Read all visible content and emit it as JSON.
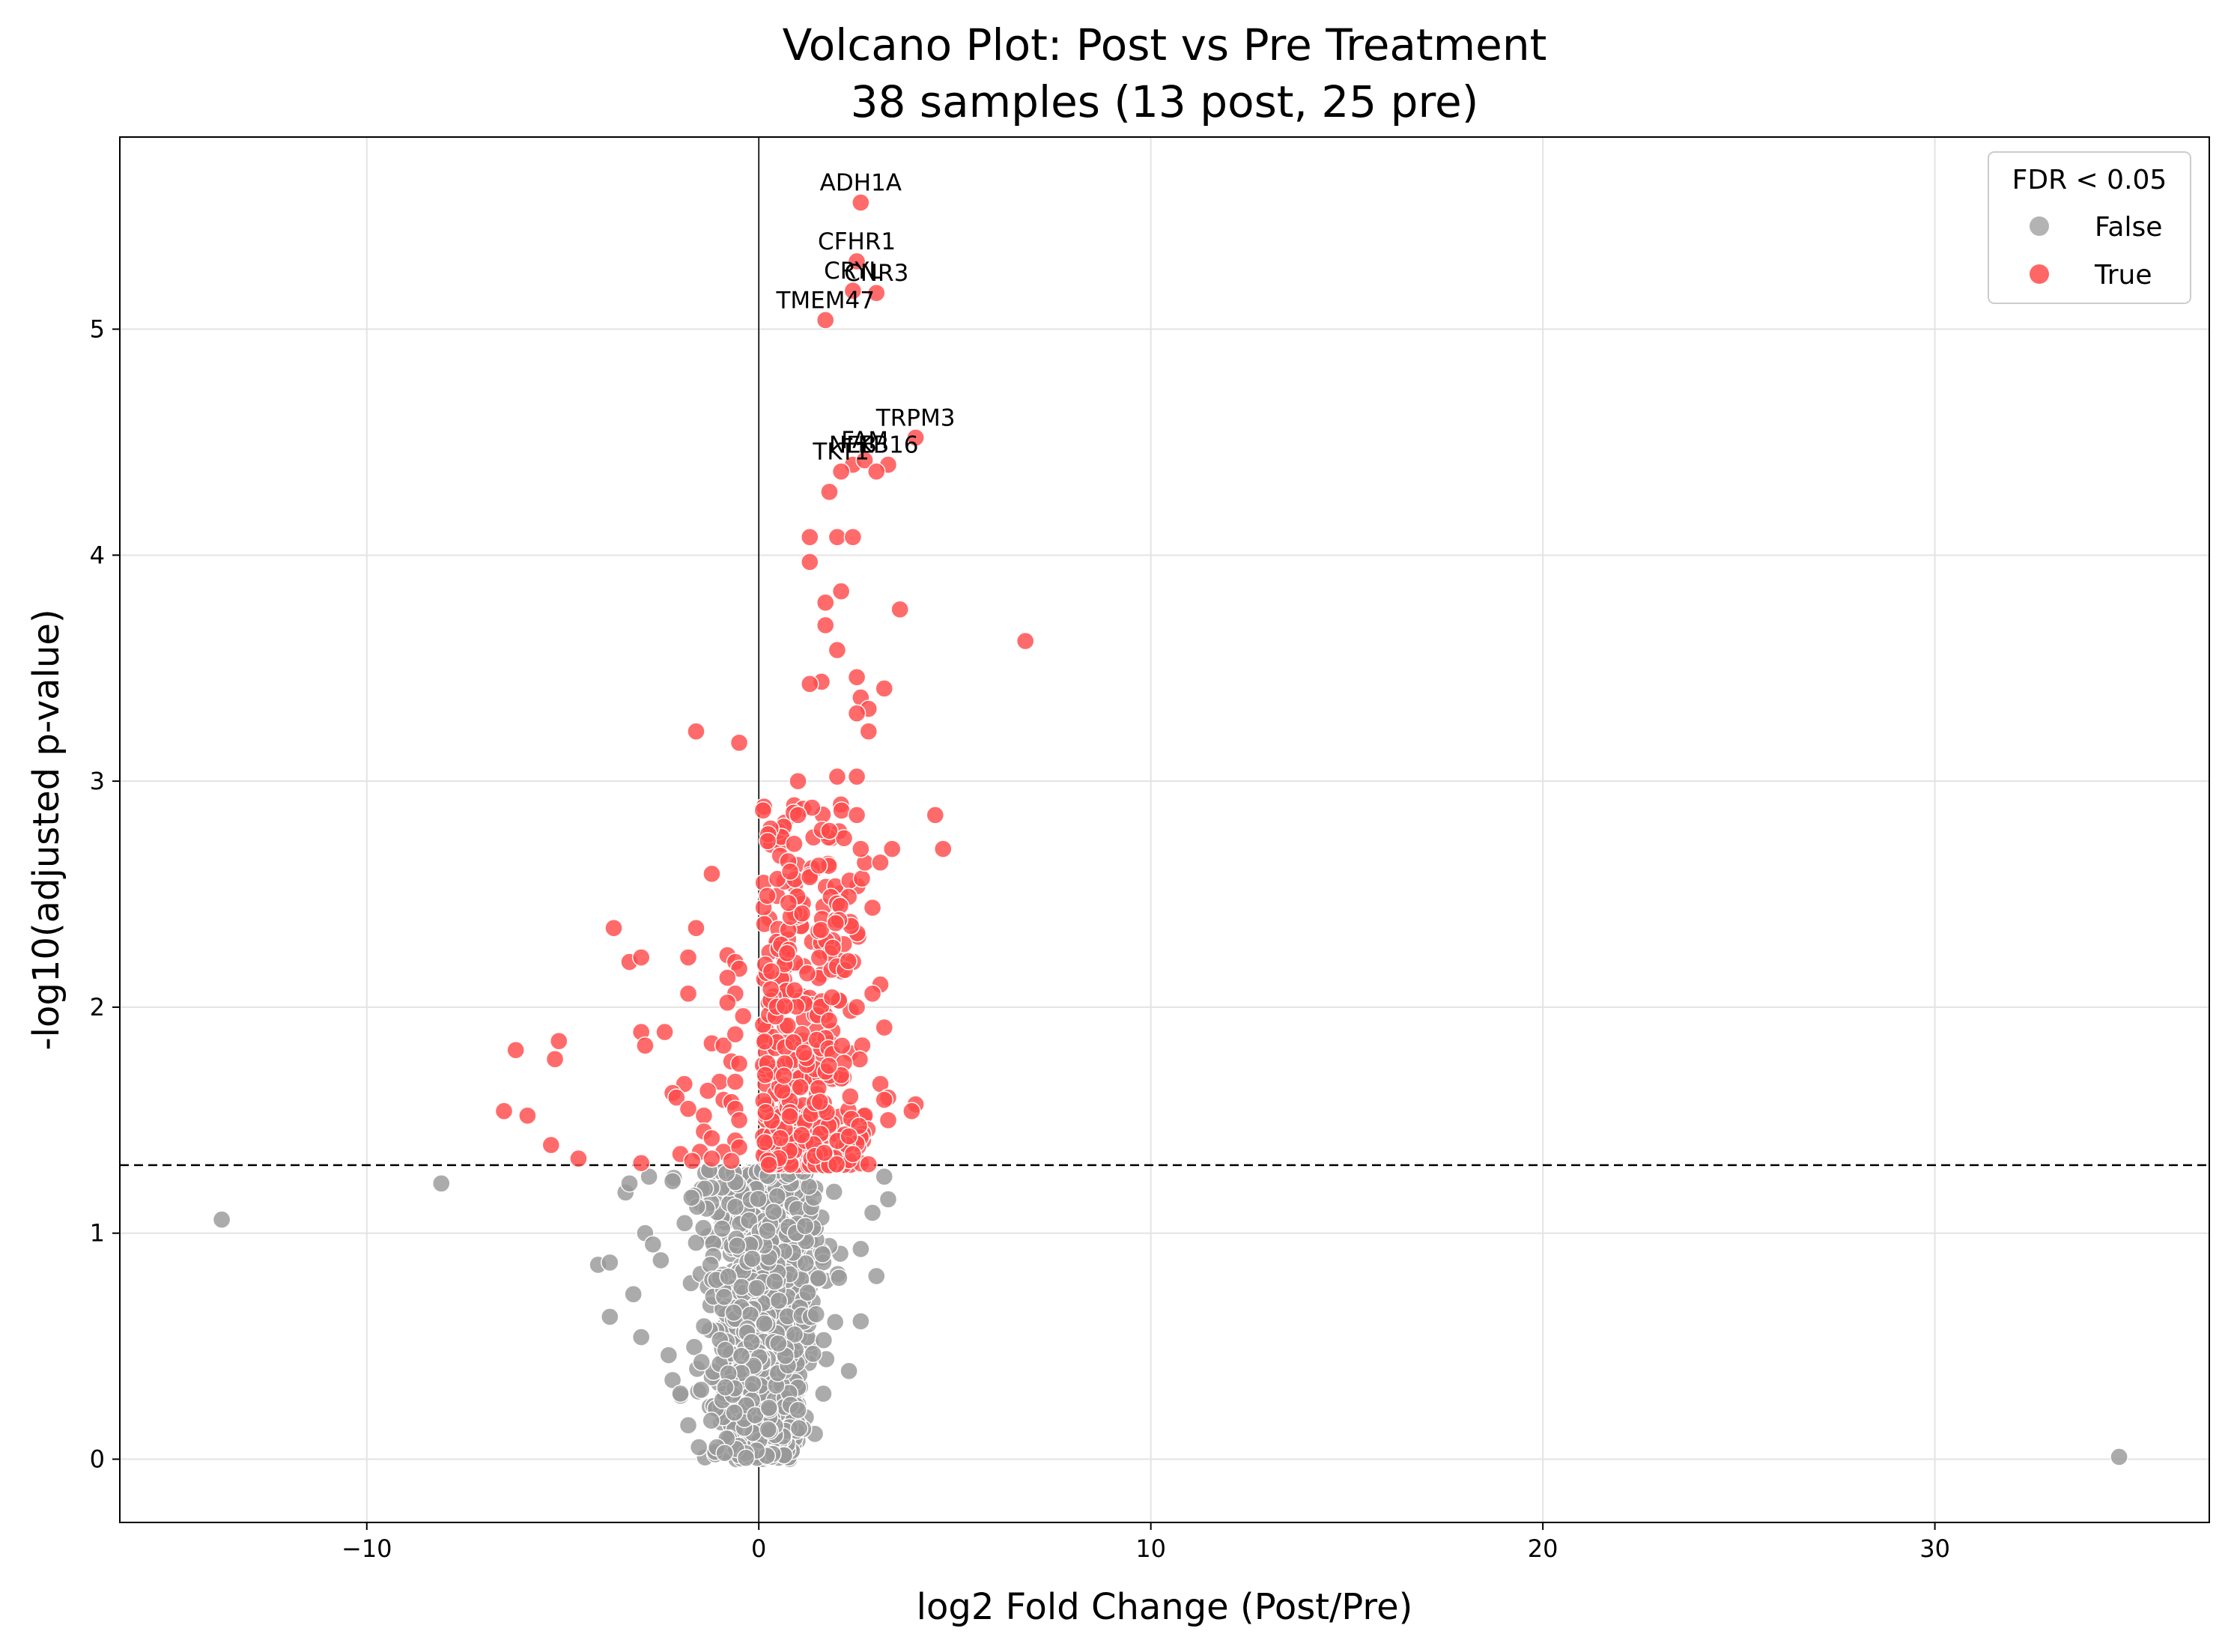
{
  "chart_data": {
    "type": "scatter",
    "title": "Volcano Plot: Post vs Pre Treatment",
    "subtitle": "38 samples (13 post, 25 pre)",
    "xlabel": "log2 Fold Change (Post/Pre)",
    "ylabel": "-log10(adjusted p-value)",
    "xlim": [
      -16.3,
      37
    ],
    "ylim": [
      -0.28,
      5.85
    ],
    "xticks": [
      -10,
      0,
      10,
      20,
      30
    ],
    "xtick_labels": [
      "−10",
      "0",
      "10",
      "20",
      "30"
    ],
    "yticks": [
      0,
      1,
      2,
      3,
      4,
      5
    ],
    "ytick_labels": [
      "0",
      "1",
      "2",
      "3",
      "4",
      "5"
    ],
    "grid": true,
    "threshold_y": 1.301,
    "reference_x": 0,
    "legend": {
      "title": "FDR < 0.05",
      "placement": "top-right",
      "entries": [
        {
          "label": "False",
          "color": "#999999"
        },
        {
          "label": "True",
          "color": "#ff4b4b"
        }
      ]
    },
    "colors": {
      "not_significant": "#999999",
      "significant": "#ff4b4b"
    },
    "series": [
      {
        "name": "False",
        "color": "#999999",
        "points": [
          [
            -13.7,
            1.06
          ],
          [
            -8.1,
            1.22
          ],
          [
            34.7,
            0.01
          ],
          [
            -4.1,
            0.86
          ],
          [
            -3.8,
            0.87
          ],
          [
            -3.8,
            0.63
          ],
          [
            -3.2,
            0.73
          ],
          [
            -3.0,
            0.54
          ],
          [
            -3.4,
            1.18
          ],
          [
            -3.3,
            1.22
          ],
          [
            -2.8,
            1.25
          ],
          [
            -2.2,
            1.23
          ],
          [
            2.3,
            0.39
          ],
          [
            2.9,
            1.09
          ],
          [
            3.0,
            0.81
          ],
          [
            3.3,
            1.15
          ],
          [
            3.2,
            1.25
          ],
          [
            2.6,
            0.61
          ],
          [
            2.6,
            0.93
          ],
          [
            -2.9,
            1.0
          ],
          [
            -2.7,
            0.95
          ],
          [
            -2.5,
            0.88
          ],
          [
            -2.3,
            0.46
          ],
          [
            -2.2,
            0.35
          ],
          [
            -2.0,
            0.29
          ],
          [
            -1.8,
            0.15
          ]
        ],
        "bulk": [
          {
            "n": 640,
            "x_mean": 0.45,
            "x_sd": 0.8,
            "y_max": 1.28
          },
          {
            "n": 260,
            "x_mean": -0.55,
            "x_sd": 0.8,
            "y_max": 1.28
          }
        ]
      },
      {
        "name": "True",
        "color": "#ff4b4b",
        "points": [
          [
            2.6,
            5.56
          ],
          [
            2.5,
            5.3
          ],
          [
            2.4,
            5.17
          ],
          [
            3.0,
            5.16
          ],
          [
            1.7,
            5.04
          ],
          [
            4.0,
            4.52
          ],
          [
            2.4,
            4.4
          ],
          [
            2.7,
            4.42
          ],
          [
            3.3,
            4.4
          ],
          [
            3.0,
            4.37
          ],
          [
            2.1,
            4.37
          ],
          [
            1.8,
            4.28
          ],
          [
            1.3,
            4.08
          ],
          [
            2.0,
            4.08
          ],
          [
            2.4,
            4.08
          ],
          [
            1.3,
            3.97
          ],
          [
            2.1,
            3.84
          ],
          [
            1.7,
            3.79
          ],
          [
            3.6,
            3.76
          ],
          [
            1.7,
            3.69
          ],
          [
            6.8,
            3.62
          ],
          [
            2.0,
            3.58
          ],
          [
            2.5,
            3.46
          ],
          [
            1.6,
            3.44
          ],
          [
            1.3,
            3.43
          ],
          [
            3.2,
            3.41
          ],
          [
            2.6,
            3.37
          ],
          [
            2.8,
            3.32
          ],
          [
            2.5,
            3.3
          ],
          [
            2.8,
            3.22
          ],
          [
            -1.6,
            3.22
          ],
          [
            -0.5,
            3.17
          ],
          [
            1.0,
            3.0
          ],
          [
            2.0,
            3.02
          ],
          [
            2.5,
            3.02
          ],
          [
            1.0,
            2.85
          ],
          [
            4.5,
            2.85
          ],
          [
            2.5,
            2.85
          ],
          [
            1.8,
            2.78
          ],
          [
            3.4,
            2.7
          ],
          [
            4.7,
            2.7
          ],
          [
            2.6,
            2.7
          ],
          [
            3.1,
            2.64
          ],
          [
            -1.2,
            2.59
          ],
          [
            0.8,
            2.6
          ],
          [
            2.9,
            2.44
          ],
          [
            -3.7,
            2.35
          ],
          [
            -1.6,
            2.35
          ],
          [
            -3.3,
            2.2
          ],
          [
            -3.0,
            2.22
          ],
          [
            -1.8,
            2.22
          ],
          [
            -0.8,
            2.23
          ],
          [
            -0.6,
            2.2
          ],
          [
            -0.5,
            2.17
          ],
          [
            -0.8,
            2.13
          ],
          [
            -1.8,
            2.06
          ],
          [
            -0.6,
            2.06
          ],
          [
            -0.8,
            2.02
          ],
          [
            3.1,
            2.1
          ],
          [
            2.9,
            2.06
          ],
          [
            2.5,
            2.0
          ],
          [
            -0.4,
            1.96
          ],
          [
            -3.0,
            1.89
          ],
          [
            -2.4,
            1.89
          ],
          [
            -2.9,
            1.83
          ],
          [
            -1.2,
            1.84
          ],
          [
            -0.9,
            1.83
          ],
          [
            -0.6,
            1.88
          ],
          [
            3.2,
            1.91
          ],
          [
            -6.2,
            1.81
          ],
          [
            -5.1,
            1.85
          ],
          [
            -5.2,
            1.77
          ],
          [
            -0.7,
            1.76
          ],
          [
            -0.5,
            1.75
          ],
          [
            -1.9,
            1.66
          ],
          [
            -1.0,
            1.67
          ],
          [
            -0.6,
            1.67
          ],
          [
            -1.3,
            1.63
          ],
          [
            -2.2,
            1.62
          ],
          [
            -2.1,
            1.6
          ],
          [
            -0.9,
            1.59
          ],
          [
            -0.7,
            1.58
          ],
          [
            -1.8,
            1.55
          ],
          [
            -0.6,
            1.55
          ],
          [
            -1.4,
            1.52
          ],
          [
            -0.5,
            1.5
          ],
          [
            3.1,
            1.66
          ],
          [
            3.3,
            1.6
          ],
          [
            3.2,
            1.59
          ],
          [
            4.0,
            1.57
          ],
          [
            3.9,
            1.54
          ],
          [
            3.3,
            1.5
          ],
          [
            -6.5,
            1.54
          ],
          [
            -5.9,
            1.52
          ],
          [
            -1.4,
            1.45
          ],
          [
            -1.2,
            1.42
          ],
          [
            -0.6,
            1.41
          ],
          [
            -5.3,
            1.39
          ],
          [
            -2.0,
            1.35
          ],
          [
            -1.5,
            1.36
          ],
          [
            -0.9,
            1.36
          ],
          [
            -0.5,
            1.38
          ],
          [
            -4.6,
            1.33
          ],
          [
            -3.0,
            1.31
          ],
          [
            -1.7,
            1.32
          ],
          [
            -1.2,
            1.33
          ],
          [
            -0.7,
            1.32
          ],
          [
            2.4,
            1.35
          ]
        ],
        "bulk": [
          {
            "n": 420,
            "x_min": 0.1,
            "x_max": 2.9,
            "y_min": 1.3,
            "y_max": 2.9
          }
        ]
      }
    ],
    "annotations": [
      {
        "label": "ADH1A",
        "x": 2.6,
        "y": 5.56
      },
      {
        "label": "CFHR1",
        "x": 2.5,
        "y": 5.3
      },
      {
        "label": "CRYL",
        "x": 2.4,
        "y": 5.17
      },
      {
        "label": "CNR3",
        "x": 3.0,
        "y": 5.16
      },
      {
        "label": "TMEM47",
        "x": 1.7,
        "y": 5.04
      },
      {
        "label": "TRPM3",
        "x": 4.0,
        "y": 4.52
      },
      {
        "label": "TKT1",
        "x": 2.1,
        "y": 4.37
      },
      {
        "label": "NEB",
        "x": 2.4,
        "y": 4.4
      },
      {
        "label": "FAM",
        "x": 2.7,
        "y": 4.42
      },
      {
        "label": "KB16",
        "x": 3.3,
        "y": 4.4
      }
    ]
  }
}
